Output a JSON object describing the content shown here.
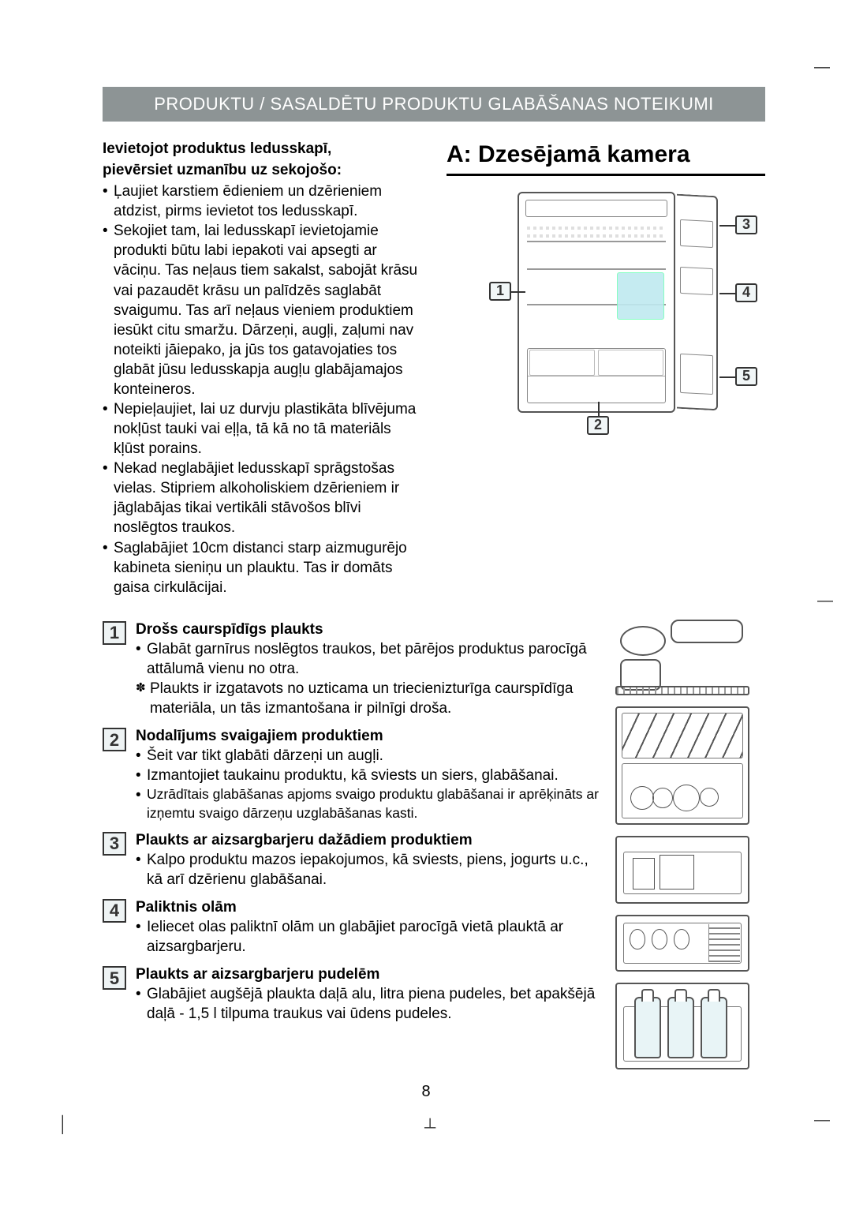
{
  "banner": "PRODUKTU / SASALDĒTU PRODUKTU GLABĀŠANAS NOTEIKUMI",
  "intro": {
    "heading_l1": "Ievietojot produktus ledusskapī,",
    "heading_l2": "pievērsiet uzmanību uz sekojošo:",
    "bullets": [
      "Ļaujiet karstiem ēdieniem un dzērieniem atdzist, pirms ievietot tos ledusskapī.",
      "Sekojiet tam, lai ledusskapī ievietojamie produkti būtu labi iepakoti vai apsegti ar vāciņu. Tas neļaus tiem sakalst, sabojāt krāsu vai pazaudēt krāsu un palīdzēs saglabāt svaigumu. Tas arī neļaus vieniem produktiem iesūkt citu smaržu. Dārzeņi, augļi, zaļumi nav noteikti jāiepako, ja jūs tos gatavojaties tos glabāt jūsu ledusskapja augļu glabājamajos konteineros.",
      "Nepieļaujiet, lai uz durvju plastikāta blīvējuma nokļūst tauki vai eļļa, tā kā no tā materiāls kļūst porains.",
      "Nekad neglabājiet ledusskapī sprāgstošas vielas. Stipriem alkoholiskiem dzērieniem ir jāglabājas tikai vertikāli stāvošos blīvi noslēgtos traukos.",
      "Saglabājiet 10cm distanci starp aizmugurējo kabineta sieniņu un plauktu. Tas ir domāts gaisa cirkulācijai."
    ]
  },
  "section_title": "A: Dzesējamā kamera",
  "diagram_callouts": {
    "c1": "1",
    "c2": "2",
    "c3": "3",
    "c4": "4",
    "c5": "5"
  },
  "items": [
    {
      "num": "1",
      "title": "Drošs caurspīdīgs plaukts",
      "lines": [
        {
          "type": "bul",
          "text": "Glabāt garnīrus noslēgtos traukos, bet pārējos produktus parocīgā attālumā vienu no otra."
        },
        {
          "type": "star",
          "text": "Plaukts ir izgatavots no uzticama un triecienizturīga caurspīdīga materiāla, un tās izmantošana ir pilnīgi droša."
        }
      ]
    },
    {
      "num": "2",
      "title": "Nodalījums svaigajiem produktiem",
      "lines": [
        {
          "type": "bul",
          "text": "Šeit var tikt glabāti dārzeņi un augļi."
        },
        {
          "type": "bul",
          "text": "Izmantojiet taukainu produktu, kā sviests un siers, glabāšanai."
        },
        {
          "type": "bul",
          "text": "Uzrādītais glabāšanas apjoms svaigo produktu glabāšanai ir aprēķināts ar izņemtu svaigo dārzeņu uzglabāšanas kasti.",
          "note": true
        }
      ]
    },
    {
      "num": "3",
      "title": "Plaukts ar aizsargbarjeru dažādiem produktiem",
      "lines": [
        {
          "type": "bul",
          "text": "Kalpo produktu mazos iepakojumos, kā sviests, piens, jogurts u.c., kā arī dzērienu glabāšanai."
        }
      ]
    },
    {
      "num": "4",
      "title": "Paliktnis olām",
      "lines": [
        {
          "type": "bul",
          "text": "Ieliecet olas paliktnī olām un glabājiet parocīgā vietā plauktā ar aizsargbarjeru."
        }
      ]
    },
    {
      "num": "5",
      "title": "Plaukts ar aizsargbarjeru pudelēm",
      "lines": [
        {
          "type": "bul",
          "text": "Glabājiet augšējā plaukta daļā alu, litra piena pudeles, bet apakšējā daļā - 1,5 l tilpuma traukus vai ūdens pudeles."
        }
      ]
    }
  ],
  "page_number": "8",
  "colors": {
    "banner_bg": "#8d9495",
    "banner_fg": "#ffffff",
    "callout_bg": "#f1f6f7",
    "mini_water": "#e8f4f6"
  }
}
